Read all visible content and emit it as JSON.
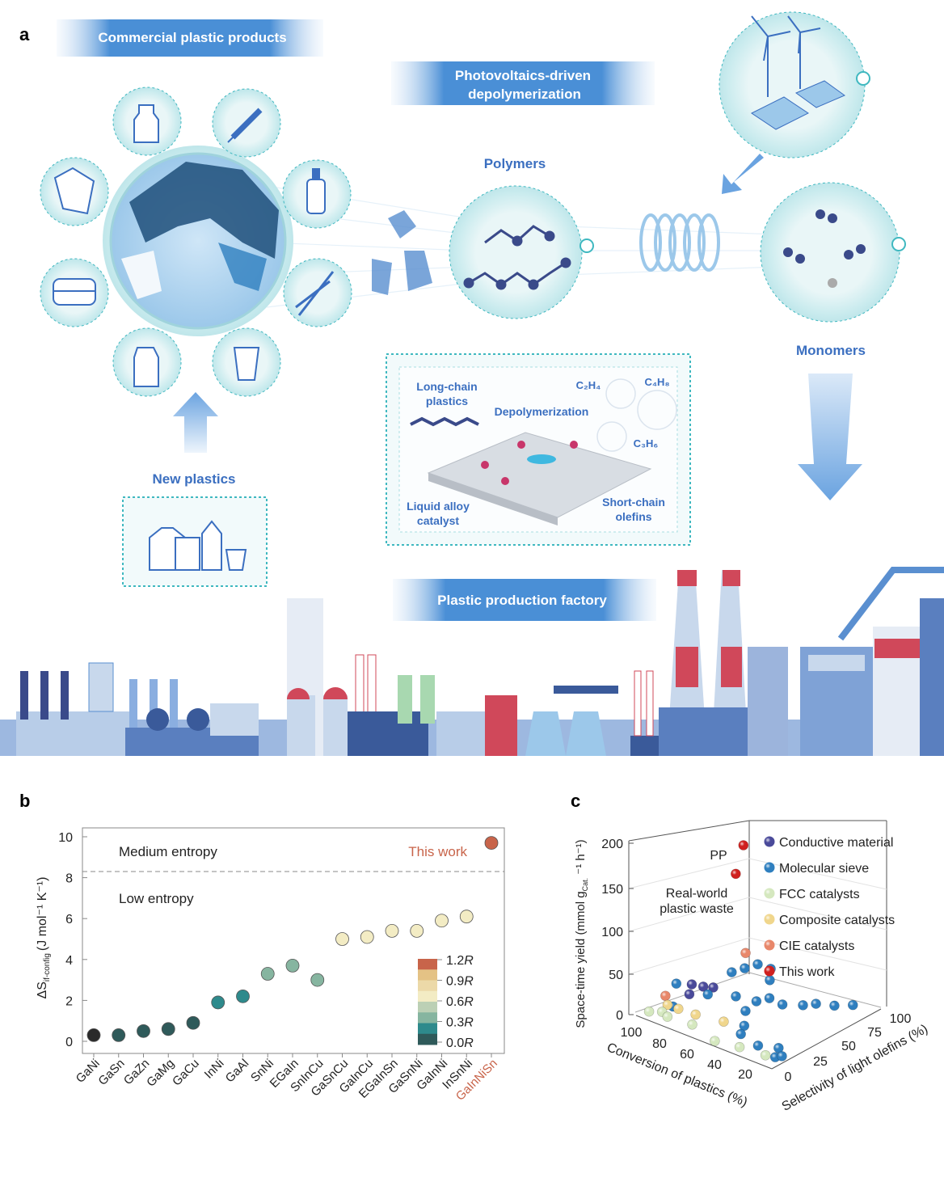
{
  "panel_labels": {
    "a": "a",
    "b": "b",
    "c": "c"
  },
  "panel_a": {
    "banner_commercial": "Commercial plastic products",
    "banner_pv_line1": "Photovoltaics-driven",
    "banner_pv_line2": "depolymerization",
    "polymers": "Polymers",
    "monomers": "Monomers",
    "new_plastics": "New plastics",
    "banner_factory": "Plastic production factory",
    "inset": {
      "long_chain_line1": "Long-chain",
      "long_chain_line2": "plastics",
      "depolymerization": "Depolymerization",
      "c2h4": "C₂H₄",
      "c4h8": "C₄H₈",
      "c3h6": "C₃H₆",
      "liquid_line1": "Liquid alloy",
      "liquid_line2": "catalyst",
      "short_line1": "Short-chain",
      "short_line2": "olefins"
    },
    "colors": {
      "accent_blue": "#3b6fc0",
      "teal": "#3fb8c0",
      "banner": "#4a8fd6"
    }
  },
  "chart_data": [
    {
      "type": "scatter",
      "ylabel_main": "ΔS",
      "ylabel_sub": "if-config",
      "ylabel_units": "(J mol⁻¹ K⁻¹)",
      "ylim": [
        0,
        10.5
      ],
      "yticks": [
        "0",
        "2",
        "4",
        "6",
        "8",
        "10"
      ],
      "grid": false,
      "threshold": 8.3,
      "region_labels": {
        "upper": "Medium entropy",
        "lower": "Low entropy"
      },
      "annotation": "This work",
      "categories": [
        "GaNi",
        "GaSn",
        "GaZn",
        "GaMg",
        "GaCu",
        "InNi",
        "GaAl",
        "SnNi",
        "EGaIn",
        "SnInCu",
        "GaSnCu",
        "GaInCu",
        "EGaInSn",
        "GaSnNi",
        "GaInNi",
        "InSnNi",
        "GaInNiSn"
      ],
      "values": [
        0.3,
        0.3,
        0.5,
        0.6,
        0.9,
        1.9,
        2.2,
        3.3,
        3.7,
        3.0,
        5.0,
        5.1,
        5.4,
        5.4,
        5.9,
        6.1,
        9.7
      ],
      "point_colors": [
        "#2a2a2a",
        "#2f5a5a",
        "#2f5a5a",
        "#2f5a5a",
        "#2f5a5a",
        "#2e8a8c",
        "#2e8a8c",
        "#86b5a0",
        "#86b5a0",
        "#86b5a0",
        "#f3ecc4",
        "#f3ecc4",
        "#f3ecc4",
        "#f3ecc4",
        "#f3ecc4",
        "#f3ecc4",
        "#c8644a"
      ],
      "highlight_category": "GaInNiSn",
      "highlight_color": "#c8644a",
      "colorbar": {
        "labels": [
          "1.2R",
          "0.9R",
          "0.6R",
          "0.3R",
          "0.0R"
        ],
        "colors": [
          "#c8644a",
          "#e4c285",
          "#ecd9a8",
          "#f3ecc4",
          "#bcd0b5",
          "#86b5a0",
          "#2e8a8c",
          "#2f5a5a"
        ]
      }
    },
    {
      "type": "scatter3d",
      "xlabel": "Conversion of plastics (%)",
      "ylabel": "Selectivity of light olefins (%)",
      "zlabel_main": "Space-time yield (mmol g",
      "zlabel_sub": "Cat.",
      "zlabel_end": " ⁻¹ h⁻¹)",
      "xticks": [
        "100",
        "80",
        "60",
        "40",
        "20"
      ],
      "yticks": [
        "0",
        "25",
        "50",
        "75",
        "100"
      ],
      "zticks": [
        "0",
        "50",
        "100",
        "150",
        "200"
      ],
      "annotations": {
        "pp": "PP",
        "real_world_line1": "Real-world",
        "real_world_line2": "plastic waste"
      },
      "series": [
        {
          "name": "Conductive material",
          "color": "#4a4a9a",
          "points": [
            [
              92,
              40,
              15
            ],
            [
              88,
              45,
              12
            ],
            [
              85,
              50,
              10
            ],
            [
              90,
              35,
              8
            ]
          ]
        },
        {
          "name": "Molecular sieve",
          "color": "#2f7fbf",
          "points": [
            [
              95,
              30,
              20
            ],
            [
              80,
              60,
              25
            ],
            [
              75,
              65,
              30
            ],
            [
              70,
              70,
              35
            ],
            [
              65,
              75,
              30
            ],
            [
              62,
              70,
              22
            ],
            [
              85,
              45,
              5
            ],
            [
              70,
              50,
              10
            ],
            [
              60,
              55,
              8
            ],
            [
              55,
              60,
              12
            ],
            [
              50,
              65,
              5
            ],
            [
              60,
              45,
              3
            ],
            [
              40,
              70,
              8
            ],
            [
              35,
              75,
              10
            ],
            [
              30,
              85,
              5
            ],
            [
              25,
              95,
              3
            ],
            [
              50,
              30,
              2
            ],
            [
              45,
              20,
              2
            ],
            [
              30,
              15,
              2
            ],
            [
              20,
              20,
              3
            ],
            [
              15,
              10,
              2
            ],
            [
              12,
              12,
              4
            ],
            [
              90,
              20,
              3
            ]
          ]
        },
        {
          "name": "FCC catalysts",
          "color": "#d5e8bf",
          "points": [
            [
              95,
              5,
              3
            ],
            [
              90,
              10,
              3
            ],
            [
              85,
              8,
              2
            ],
            [
              70,
              10,
              2
            ],
            [
              35,
              5,
              3
            ],
            [
              20,
              8,
              2
            ],
            [
              50,
              3,
              1
            ]
          ]
        },
        {
          "name": "Composite catalysts",
          "color": "#f0d68c",
          "points": [
            [
              90,
              15,
              8
            ],
            [
              85,
              18,
              5
            ],
            [
              75,
              20,
              4
            ],
            [
              60,
              25,
              3
            ]
          ]
        },
        {
          "name": "CIE catalysts",
          "color": "#e8876a",
          "points": [
            [
              95,
              20,
              12
            ],
            [
              99,
              99,
              10
            ]
          ]
        },
        {
          "name": "This work",
          "color": "#d0201e",
          "points": [
            [
              99,
              97,
              137
            ],
            [
              99,
              90,
              108
            ]
          ]
        }
      ]
    }
  ]
}
